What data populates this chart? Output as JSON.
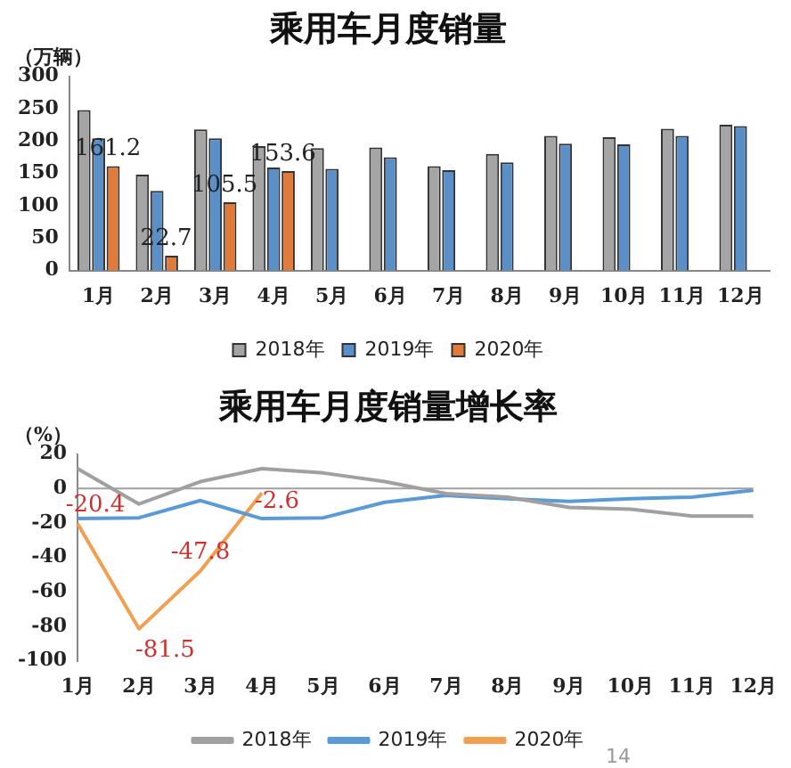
{
  "chart_data": [
    {
      "type": "bar",
      "title": "乘用车月度销量",
      "ylabel": "（万辆）",
      "categories": [
        "1月",
        "2月",
        "3月",
        "4月",
        "5月",
        "6月",
        "7月",
        "8月",
        "9月",
        "10月",
        "11月",
        "12月"
      ],
      "series": [
        {
          "name": "2018年",
          "color": "#a5a5a5",
          "values": [
            248,
            148,
            218,
            192,
            189,
            190,
            161,
            180,
            208,
            206,
            219,
            225
          ]
        },
        {
          "name": "2019年",
          "color": "#5b8fc7",
          "values": [
            204,
            123,
            204,
            159,
            157,
            175,
            155,
            167,
            196,
            195,
            208,
            223
          ]
        },
        {
          "name": "2020年",
          "color": "#e07b39",
          "values": [
            161.2,
            22.7,
            105.5,
            153.6,
            null,
            null,
            null,
            null,
            null,
            null,
            null,
            null
          ],
          "value_labels": [
            "161.2",
            "22.7",
            "105.5",
            "153.6",
            null,
            null,
            null,
            null,
            null,
            null,
            null,
            null
          ]
        }
      ],
      "ylim": [
        0,
        300
      ],
      "yticks": [
        0,
        50,
        100,
        150,
        200,
        250,
        300
      ],
      "grid": false,
      "legend": "bottom"
    },
    {
      "type": "line",
      "title": "乘用车月度销量增长率",
      "ylabel": "（%）",
      "categories": [
        "1月",
        "2月",
        "3月",
        "4月",
        "5月",
        "6月",
        "7月",
        "8月",
        "9月",
        "10月",
        "11月",
        "12月"
      ],
      "series": [
        {
          "name": "2018年",
          "color": "#a0a0a0",
          "values": [
            11.5,
            -9,
            4,
            11.5,
            9,
            4,
            -3,
            -5,
            -11,
            -12,
            -16,
            -16
          ]
        },
        {
          "name": "2019年",
          "color": "#5b9bd5",
          "values": [
            -17.5,
            -17,
            -7,
            -17.5,
            -17,
            -8,
            -4,
            -6,
            -7.5,
            -6,
            -5,
            -1
          ]
        },
        {
          "name": "2020年",
          "color": "#f0a050",
          "values": [
            -20.4,
            -81.5,
            -47.8,
            -2.6,
            null,
            null,
            null,
            null,
            null,
            null,
            null,
            null
          ],
          "value_labels": [
            "-20.4",
            "-81.5",
            "-47.8",
            "-2.6",
            null,
            null,
            null,
            null,
            null,
            null,
            null,
            null
          ]
        }
      ],
      "ylim": [
        -100,
        20
      ],
      "yticks": [
        -100,
        -80,
        -60,
        -40,
        -20,
        0,
        20
      ],
      "grid": false,
      "legend": "bottom",
      "marker": "none",
      "line_style": "solid",
      "ref_lines": [
        {
          "axis": "y",
          "value": 0,
          "color": "#a0a0a0"
        }
      ],
      "annotations": [
        "14"
      ]
    }
  ]
}
